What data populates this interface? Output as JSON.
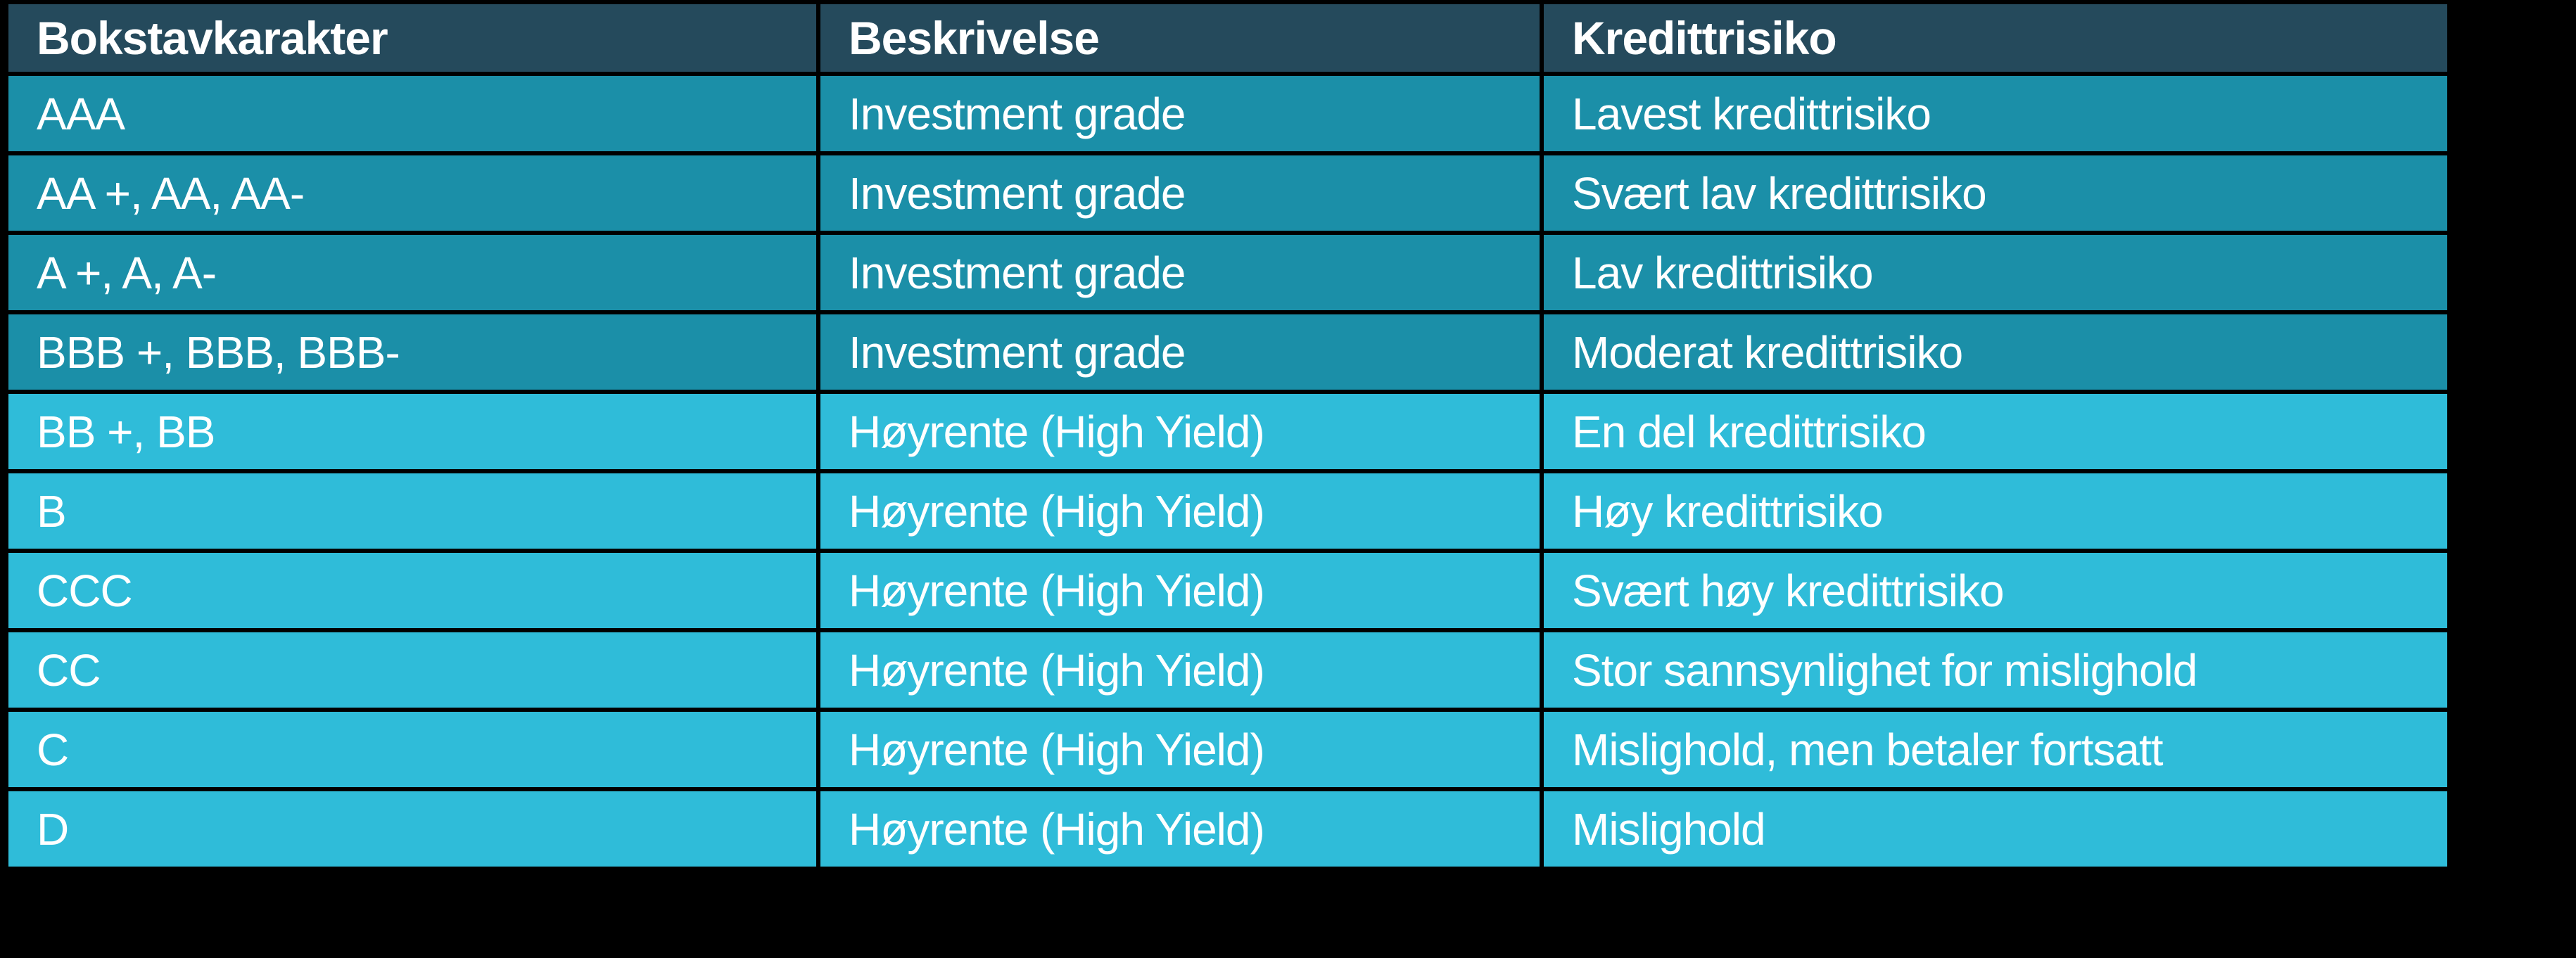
{
  "page": {
    "background": "#000000"
  },
  "table": {
    "columns": [
      "Bokstavkarakter",
      "Beskrivelse",
      "Kredittrisiko"
    ],
    "rows": [
      {
        "rating": "AAA",
        "description": "Investment grade",
        "risk": "Lavest kredittrisiko",
        "group": "investment"
      },
      {
        "rating": "AA +, AA, AA-",
        "description": "Investment grade",
        "risk": "Svært lav kredittrisiko",
        "group": "investment"
      },
      {
        "rating": "A +, A, A-",
        "description": "Investment grade",
        "risk": "Lav kredittrisiko",
        "group": "investment"
      },
      {
        "rating": "BBB +, BBB, BBB-",
        "description": "Investment grade",
        "risk": "Moderat kredittrisiko",
        "group": "investment"
      },
      {
        "rating": "BB +, BB",
        "description": "Høyrente (High Yield)",
        "risk": "En del kredittrisiko",
        "group": "high_yield"
      },
      {
        "rating": "B",
        "description": "Høyrente (High Yield)",
        "risk": "Høy kredittrisiko",
        "group": "high_yield"
      },
      {
        "rating": "CCC",
        "description": "Høyrente (High Yield)",
        "risk": "Svært høy kredittrisiko",
        "group": "high_yield"
      },
      {
        "rating": "CC",
        "description": "Høyrente (High Yield)",
        "risk": "Stor sannsynlighet for mislighold",
        "group": "high_yield"
      },
      {
        "rating": "C",
        "description": "Høyrente (High Yield)",
        "risk": "Mislighold, men betaler fortsatt",
        "group": "high_yield"
      },
      {
        "rating": "D",
        "description": "Høyrente (High Yield)",
        "risk": "Mislighold",
        "group": "high_yield"
      }
    ],
    "colors": {
      "page_bg": "#000000",
      "header_bg": "#254a5c",
      "investment_row_bg": "#1b8fa8",
      "high_yield_row_bg": "#2fbcd9",
      "border": "#000000",
      "text": "#ffffff"
    }
  }
}
